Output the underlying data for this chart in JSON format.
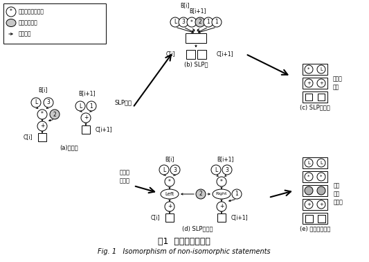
{
  "title_cn": "图1  同构化异构语句",
  "title_en": "Fig. 1   Isomorphism of non-isomorphic statements",
  "legend": [
    "指令节点或者常量",
    "选择指令节点",
    "数据流边"
  ],
  "sub_a": "(a)依赖图",
  "sub_b": "(b) SLP图",
  "sub_c": "(c) SLP指令组",
  "sub_d": "(d) SLP补充图",
  "sub_e": "(e) 补充图指令组",
  "label_slp": "SLP算法",
  "label_iso": "同结构\n化算法",
  "label_noniso": "非同构\n指令",
  "label_isoafter": "同构\n化后\n的指令"
}
